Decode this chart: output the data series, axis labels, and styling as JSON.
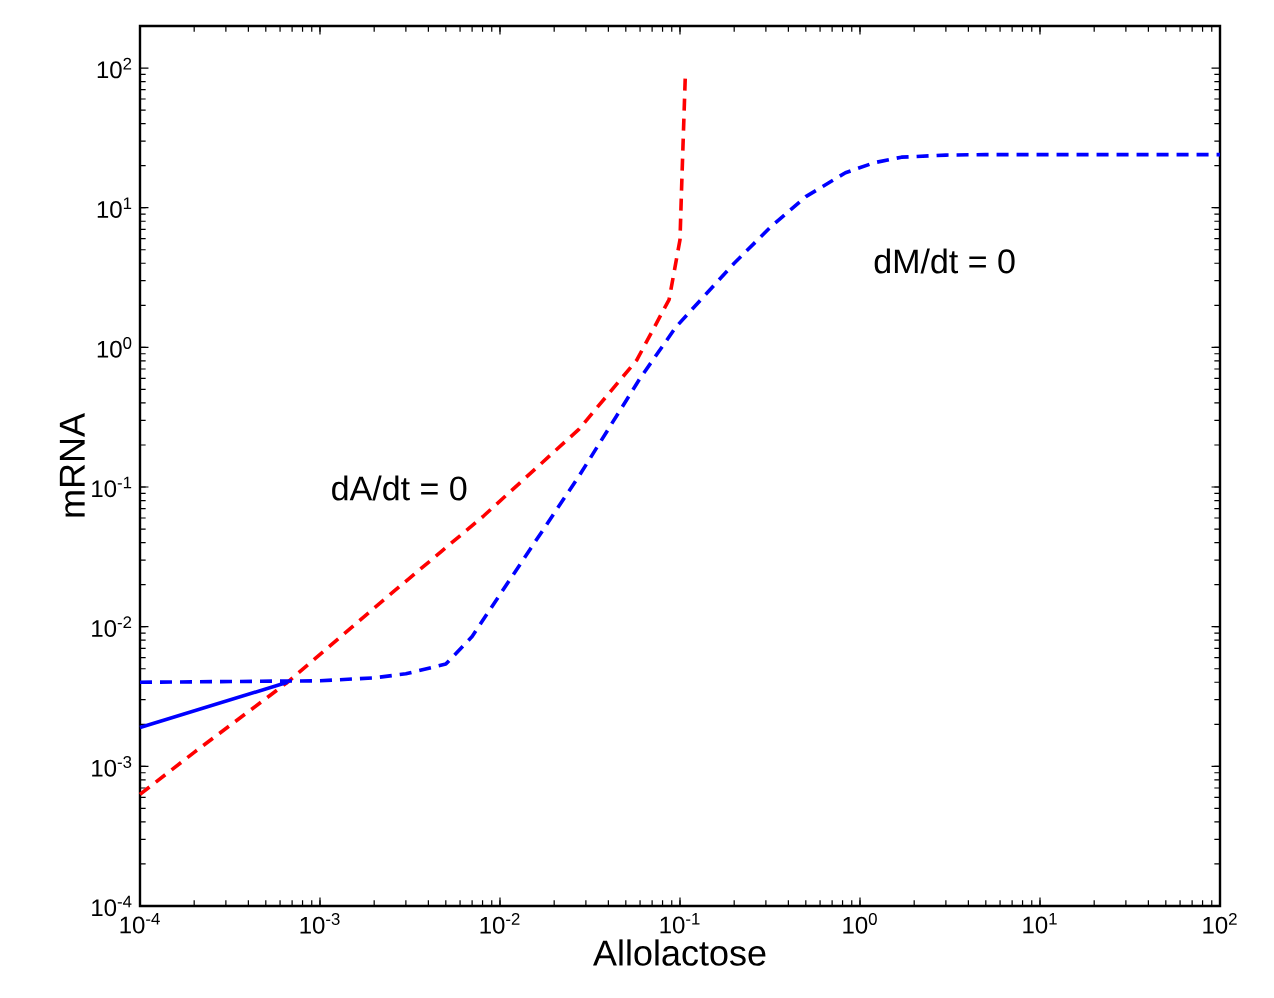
{
  "chart_data": {
    "type": "line",
    "xlabel": "Allolactose",
    "ylabel": "mRNA",
    "log": "xy",
    "grid": false,
    "xlim": [
      0.0001,
      100
    ],
    "ylim": [
      0.0001,
      200
    ],
    "xticks": [
      {
        "value": 0.0001,
        "label": "10$^{-4}$"
      },
      {
        "value": 0.001,
        "label": "10$^{-3}$"
      },
      {
        "value": 0.01,
        "label": "10$^{-2}$"
      },
      {
        "value": 0.1,
        "label": "10$^{-1}$"
      },
      {
        "value": 1,
        "label": "10$^{0}$"
      },
      {
        "value": 10,
        "label": "10$^{1}$"
      },
      {
        "value": 100,
        "label": "10$^{2}$"
      }
    ],
    "yticks": [
      {
        "value": 0.0001,
        "label": "10$^{-4}$"
      },
      {
        "value": 0.001,
        "label": "10$^{-3}$"
      },
      {
        "value": 0.01,
        "label": "10$^{-2}$"
      },
      {
        "value": 0.1,
        "label": "10$^{-1}$"
      },
      {
        "value": 1,
        "label": "10$^{0}$"
      },
      {
        "value": 10,
        "label": "10$^{1}$"
      },
      {
        "value": 100,
        "label": "10$^{2}$"
      }
    ],
    "series": [
      {
        "color": "#ff0000",
        "line_style": "dashed",
        "x": [
          0.0001,
          0.0002,
          0.00066,
          0.0024,
          0.0081,
          0.0275,
          0.0575,
          0.087,
          0.1,
          0.102,
          0.107
        ],
        "values": [
          0.00063,
          0.00126,
          0.004,
          0.0166,
          0.062,
          0.26,
          0.81,
          2.2,
          5.9,
          13.5,
          87
        ]
      },
      {
        "color": "#0000ff",
        "line_style": "dashed",
        "x": [
          0.0001,
          0.001,
          0.002,
          0.003,
          0.005,
          0.007,
          0.01,
          0.0275,
          0.06,
          0.095,
          0.2,
          0.316,
          0.5,
          0.83,
          1.2,
          1.7,
          3,
          5,
          100
        ],
        "values": [
          0.004,
          0.0041,
          0.0043,
          0.0046,
          0.0054,
          0.0085,
          0.017,
          0.12,
          0.6,
          1.4,
          4,
          7.2,
          12,
          17.8,
          21,
          23,
          23.8,
          24,
          24
        ]
      },
      {
        "color": "#0000ff",
        "line_style": "solid",
        "x": [
          0.0001,
          0.00066
        ],
        "values": [
          0.0019,
          0.004
        ]
      }
    ],
    "annotations": [
      "dA/dt = 0",
      "dM/dt = 0"
    ]
  }
}
